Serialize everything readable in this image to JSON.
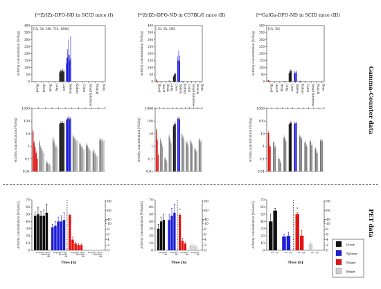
{
  "colors": {
    "liver": "#111111",
    "spleen": "#1c1cd6",
    "heart": "#e11414",
    "brain": "#cfcfcf",
    "blood": "#e11414",
    "gray": "#8a8a8a",
    "light": "#c8c8c8"
  },
  "side_labels": {
    "gamma": "Gamma-Counter data",
    "pet": "PET data"
  },
  "chart_data": [
    {
      "id": "top1",
      "type": "bar",
      "title": "[⁸⁹Zr]Zr-DFO-ND in SCID mice (I)",
      "box_label": "[1h, 3h, 24h, 72h, 168h]",
      "ylabel": "Activity concentration [%IA/g]",
      "ylim": [
        0,
        400
      ],
      "yticks": [
        0,
        50,
        100,
        150,
        200,
        250,
        300,
        350,
        400
      ],
      "categories": [
        "Blood",
        "Heart",
        "Brain",
        "Lung",
        "Liver",
        "Spleen",
        "Kidney",
        "Colon",
        "Small Intestine",
        "Muscle",
        "Bone"
      ],
      "bars_per_group": 5,
      "values": [
        [
          1,
          0.4,
          0.2,
          0.1,
          0.05
        ],
        [
          0.5,
          0.3,
          0.2,
          0.1,
          0.1
        ],
        [
          0.05,
          0.05,
          0.05,
          0.05,
          0.05
        ],
        [
          3,
          2,
          1,
          0.8,
          0.5
        ],
        [
          65,
          72,
          78,
          75,
          70
        ],
        [
          130,
          170,
          190,
          150,
          165
        ],
        [
          4,
          3,
          3,
          2,
          2
        ],
        [
          1,
          1,
          0.8,
          0.5,
          0.5
        ],
        [
          1,
          0.8,
          0.5,
          0.4,
          0.3
        ],
        [
          0.3,
          0.2,
          0.2,
          0.1,
          0.1
        ],
        [
          1,
          1,
          1,
          1,
          1
        ]
      ],
      "errors": [
        [
          0,
          0,
          0,
          0,
          0
        ],
        [
          0,
          0,
          0,
          0,
          0
        ],
        [
          0,
          0,
          0,
          0,
          0
        ],
        [
          0,
          0,
          0,
          0,
          0
        ],
        [
          10,
          12,
          15,
          12,
          10
        ],
        [
          40,
          60,
          110,
          40,
          160
        ],
        [
          0,
          0,
          0,
          0,
          0
        ],
        [
          0,
          0,
          0,
          0,
          0
        ],
        [
          0,
          0,
          0,
          0,
          0
        ],
        [
          0,
          0,
          0,
          0,
          0
        ],
        [
          0,
          0,
          0,
          0,
          0
        ]
      ]
    },
    {
      "id": "top2",
      "type": "bar",
      "title": "[⁸⁹Zr]Zr-DFO-ND in C57BL/6 mice (II)",
      "box_label": "[1h, 3h, 24h]",
      "ylabel": "Activity concentration [%IA/g]",
      "ylim": [
        0,
        400
      ],
      "yticks": [
        0,
        50,
        100,
        150,
        200,
        250,
        300,
        350,
        400
      ],
      "categories": [
        "Blood",
        "Heart",
        "Brain",
        "Lung",
        "Liver",
        "Spleen",
        "Kidney",
        "Colon",
        "Small Intestine",
        "Muscle",
        "Bone"
      ],
      "bars_per_group": 3,
      "values": [
        [
          15,
          4,
          1
        ],
        [
          3,
          2,
          1
        ],
        [
          0.1,
          0.1,
          0.1
        ],
        [
          8,
          5,
          3
        ],
        [
          35,
          48,
          55
        ],
        [
          150,
          155,
          145
        ],
        [
          6,
          5,
          3
        ],
        [
          2,
          1.5,
          1
        ],
        [
          2,
          1.5,
          1
        ],
        [
          0.5,
          0.4,
          0.3
        ],
        [
          1.5,
          1.5,
          1.5
        ]
      ],
      "errors": [
        [
          0,
          0,
          0
        ],
        [
          0,
          0,
          0
        ],
        [
          0,
          0,
          0
        ],
        [
          0,
          0,
          0
        ],
        [
          8,
          10,
          8
        ],
        [
          30,
          70,
          40
        ],
        [
          0,
          0,
          0
        ],
        [
          0,
          0,
          0
        ],
        [
          0,
          0,
          0
        ],
        [
          0,
          0,
          0
        ],
        [
          0,
          0,
          0
        ]
      ]
    },
    {
      "id": "top3",
      "type": "bar",
      "title": "[⁶⁸Ga]Ga-DFO-ND in SCID mice (III)",
      "box_label": "[1h, 3h]",
      "ylabel": "Activity concentration [%IA/g]",
      "ylim": [
        0,
        400
      ],
      "yticks": [
        0,
        50,
        100,
        150,
        200,
        250,
        300,
        350,
        400
      ],
      "categories": [
        "Blood",
        "Heart",
        "Brain",
        "Lung",
        "Liver",
        "Spleen",
        "Kidney",
        "Colon",
        "Small Intestine",
        "Muscle",
        "Bone"
      ],
      "bars_per_group": 2,
      "values": [
        [
          10,
          1
        ],
        [
          2,
          1
        ],
        [
          0.1,
          0.1
        ],
        [
          5,
          3
        ],
        [
          60,
          75
        ],
        [
          60,
          65
        ],
        [
          6,
          4
        ],
        [
          2,
          1
        ],
        [
          2,
          1
        ],
        [
          0.5,
          0.3
        ],
        [
          2,
          2
        ]
      ],
      "errors": [
        [
          0,
          0
        ],
        [
          0,
          0
        ],
        [
          0,
          0
        ],
        [
          0,
          0
        ],
        [
          15,
          15
        ],
        [
          15,
          15
        ],
        [
          0,
          0
        ],
        [
          0,
          0
        ],
        [
          0,
          0
        ],
        [
          0,
          0
        ],
        [
          0,
          0
        ]
      ]
    },
    {
      "id": "mid1",
      "type": "bar",
      "log": true,
      "ylabel": "Activity concentration [%IA/g]",
      "ylim": [
        0.01,
        1000
      ],
      "yticks": [
        0.01,
        0.1,
        1,
        10,
        100,
        1000
      ],
      "ytick_labels": [
        "0.01",
        "0.1",
        "1",
        "10",
        "100",
        "1000"
      ],
      "bars_per_group": 5,
      "values": [
        [
          15,
          2,
          0.8,
          0.3,
          0.1
        ],
        [
          2,
          0.8,
          0.5,
          0.3,
          0.2
        ],
        [
          0.05,
          0.04,
          0.03,
          0.03,
          0.02
        ],
        [
          4,
          2,
          1,
          0.8,
          0.5
        ],
        [
          60,
          70,
          75,
          72,
          68
        ],
        [
          120,
          150,
          180,
          140,
          160
        ],
        [
          6,
          4,
          3,
          2,
          2
        ],
        [
          1.5,
          1,
          0.8,
          0.5,
          0.4
        ],
        [
          1.2,
          0.9,
          0.6,
          0.4,
          0.3
        ],
        [
          0.4,
          0.3,
          0.2,
          0.15,
          0.1
        ],
        [
          3,
          3,
          2.5,
          2.5,
          2
        ]
      ]
    },
    {
      "id": "mid2",
      "type": "bar",
      "log": true,
      "ylabel": "Activity concentration [%IA/g]",
      "ylim": [
        0.01,
        1000
      ],
      "yticks": [
        0.01,
        0.1,
        1,
        10,
        100,
        1000
      ],
      "ytick_labels": [
        "0.01",
        "0.1",
        "1",
        "10",
        "100",
        "1000"
      ],
      "bars_per_group": 3,
      "values": [
        [
          20,
          3,
          0.2
        ],
        [
          3,
          1.5,
          0.8
        ],
        [
          0.1,
          0.08,
          0.05
        ],
        [
          6,
          3,
          1.5
        ],
        [
          40,
          55,
          60
        ],
        [
          150,
          160,
          140
        ],
        [
          8,
          5,
          3
        ],
        [
          2,
          1.5,
          1
        ],
        [
          2.5,
          1.5,
          1
        ],
        [
          0.6,
          0.4,
          0.3
        ],
        [
          3,
          2.5,
          2
        ]
      ]
    },
    {
      "id": "mid3",
      "type": "bar",
      "log": true,
      "ylabel": "Activity concentration [%IA/g]",
      "ylim": [
        0.01,
        1000
      ],
      "yticks": [
        0.01,
        0.1,
        1,
        10,
        100,
        1000
      ],
      "ytick_labels": [
        "0.01",
        "0.1",
        "1",
        "10",
        "100",
        "1000"
      ],
      "bars_per_group": 2,
      "values": [
        [
          12,
          1
        ],
        [
          2,
          0.8
        ],
        [
          0.1,
          0.05
        ],
        [
          5,
          2.5
        ],
        [
          60,
          75
        ],
        [
          65,
          70
        ],
        [
          6,
          4
        ],
        [
          2,
          1
        ],
        [
          2.5,
          1.2
        ],
        [
          0.6,
          0.3
        ],
        [
          3,
          2.5
        ]
      ]
    },
    {
      "id": "pet1",
      "type": "bar",
      "broken_axis": true,
      "ylabel": "Activity concentration [%IA/mL]",
      "xlabel": "Time [h]",
      "left_ticks": [
        0,
        10,
        20,
        30,
        40,
        50,
        60,
        70
      ],
      "right_ticks": [
        0,
        2,
        4,
        6,
        8,
        10,
        40,
        60,
        80
      ],
      "right_axis_label": "I",
      "x_tick_labels": [
        "1",
        "3",
        "24",
        "72",
        "168"
      ],
      "groups": [
        {
          "organ": "Liver",
          "values": [
            48,
            50,
            48,
            48,
            52
          ],
          "errors": [
            5,
            10,
            6,
            8,
            12
          ]
        },
        {
          "organ": "Spleen",
          "values": [
            32,
            34,
            40,
            40,
            42
          ],
          "errors": [
            4,
            6,
            6,
            8,
            10
          ]
        },
        {
          "organ": "Heart",
          "values": [
            50,
            4,
            2.5,
            2,
            2
          ],
          "errors": [
            2,
            1,
            0.5,
            0.5,
            0.4
          ]
        },
        {
          "organ": "Brain",
          "values": [
            0.3,
            0.3,
            0.2,
            0.2,
            0.2
          ],
          "errors": [
            0,
            0,
            0,
            0,
            0
          ]
        }
      ]
    },
    {
      "id": "pet2",
      "type": "bar",
      "broken_axis": true,
      "ylabel": "Activity concentration [%IA/mL]",
      "xlabel": "Time [h]",
      "left_ticks": [
        0,
        10,
        20,
        30,
        40,
        50,
        60,
        70
      ],
      "right_ticks": [
        0,
        2,
        4,
        6,
        8,
        10,
        40,
        60,
        80
      ],
      "x_tick_labels": [
        "1",
        "3",
        "24"
      ],
      "groups": [
        {
          "organ": "Liver",
          "values": [
            30,
            40,
            42
          ],
          "errors": [
            6,
            6,
            8
          ]
        },
        {
          "organ": "Spleen",
          "values": [
            42,
            48,
            52
          ],
          "errors": [
            8,
            10,
            12
          ]
        },
        {
          "organ": "Heart",
          "values": [
            50,
            3.5,
            2.5
          ],
          "errors": [
            3,
            1,
            0.5
          ]
        },
        {
          "organ": "Brain",
          "values": [
            2,
            2,
            1.5
          ],
          "errors": [
            0.5,
            0.5,
            0.5
          ]
        }
      ],
      "annotation": "*"
    },
    {
      "id": "pet3",
      "type": "bar",
      "broken_axis": true,
      "ylabel": "Activity concentration [%IA/mL]",
      "xlabel": "Time [h]",
      "left_ticks": [
        0,
        10,
        20,
        30,
        40,
        50,
        60,
        70
      ],
      "right_ticks": [
        0,
        2,
        4,
        6,
        8,
        10,
        40,
        60,
        80
      ],
      "x_tick_labels": [
        "1",
        "3"
      ],
      "groups": [
        {
          "organ": "Liver",
          "values": [
            40,
            55
          ],
          "errors": [
            10,
            3
          ]
        },
        {
          "organ": "Spleen",
          "values": [
            19,
            20
          ],
          "errors": [
            3,
            5
          ]
        },
        {
          "organ": "Heart",
          "values": [
            52,
            5.5
          ],
          "errors": [
            3,
            2
          ]
        },
        {
          "organ": "Brain",
          "values": [
            2.5,
            0.3
          ],
          "errors": [
            1,
            0
          ]
        }
      ],
      "annotation": "*"
    }
  ],
  "legend": {
    "items": [
      {
        "label": "Liver",
        "color": "#111111"
      },
      {
        "label": "Spleen",
        "color": "#1c1cd6"
      },
      {
        "label": "Heart",
        "color": "#e11414"
      },
      {
        "label": "Brain",
        "color": "#cfcfcf"
      }
    ]
  }
}
